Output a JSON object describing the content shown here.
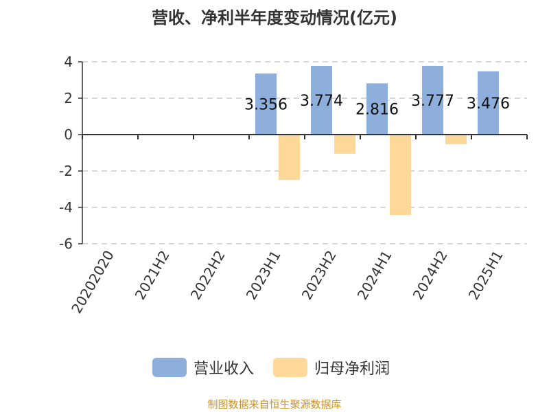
{
  "chart_data": {
    "type": "bar",
    "title": "营收、净利半年度变动情况(亿元)",
    "categories": [
      "20202020",
      "2021H2",
      "2022H2",
      "2023H1",
      "2023H2",
      "2024H1",
      "2024H2",
      "2025H1"
    ],
    "series": [
      {
        "name": "营业收入",
        "color": "#8eaedb",
        "values": [
          null,
          null,
          null,
          3.356,
          3.774,
          2.816,
          3.777,
          3.476
        ],
        "labels": [
          "",
          "",
          "",
          "3.356",
          "3.774",
          "2.816",
          "3.777",
          "3.476"
        ]
      },
      {
        "name": "归母净利润",
        "color": "#fed898",
        "values": [
          null,
          null,
          null,
          -2.49,
          -1.05,
          -4.42,
          -0.53,
          0.03
        ]
      }
    ],
    "ylim": [
      -6,
      4
    ],
    "yticks": [
      "4",
      "2",
      "0",
      "-2",
      "-4",
      "-6"
    ],
    "grid": true,
    "legend_position": "bottom"
  },
  "source": "制图数据来自恒生聚源数据库"
}
